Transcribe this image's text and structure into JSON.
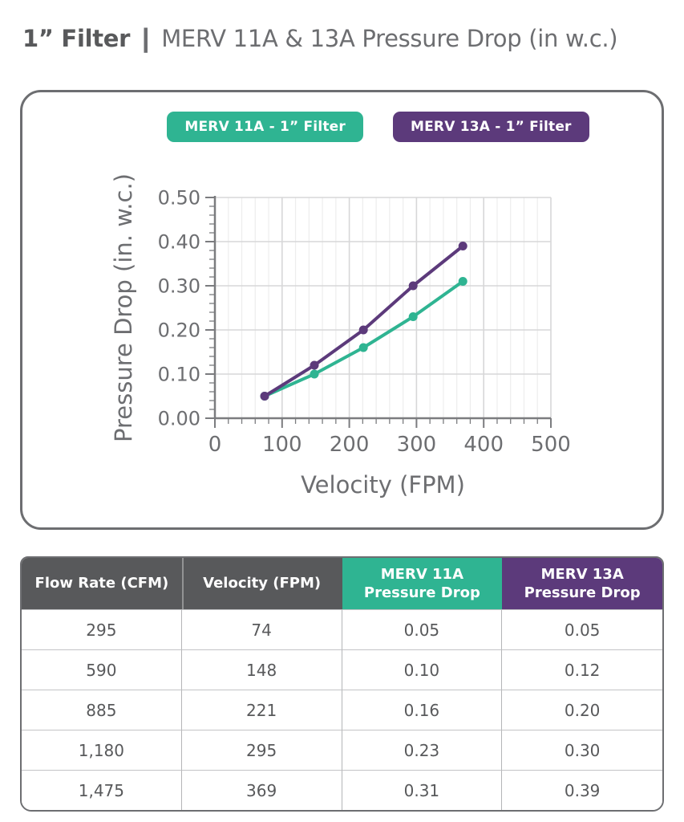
{
  "title": {
    "product": "1” Filter",
    "separator": "|",
    "description": "MERV 11A & 13A Pressure Drop (in w.c.)"
  },
  "colors": {
    "teal": "#2FB492",
    "purple": "#5C3A7B",
    "header_gray": "#58595B",
    "text_gray": "#6d6e71"
  },
  "legend": {
    "items": [
      {
        "label": "MERV 11A - 1” Filter",
        "color": "#2FB492"
      },
      {
        "label": "MERV 13A - 1” Filter",
        "color": "#5C3A7B"
      }
    ]
  },
  "chart_data": {
    "type": "line",
    "title": "",
    "xlabel": "Velocity (FPM)",
    "ylabel": "Pressure Drop (in. w.c.)",
    "xlim": [
      0,
      500
    ],
    "ylim": [
      0,
      0.5
    ],
    "x_major_ticks": [
      0,
      100,
      200,
      300,
      400,
      500
    ],
    "x_minor_step": 20,
    "y_major_ticks": [
      0,
      0.1,
      0.2,
      0.3,
      0.4,
      0.5
    ],
    "y_minor_step": 0.02,
    "y_tick_decimals": 2,
    "grid": "horizontal major gridlines + vertical minor/major gridlines, light gray",
    "legend_position": "top",
    "x": [
      74,
      148,
      221,
      295,
      369
    ],
    "series": [
      {
        "name": "MERV 11A - 1” Filter",
        "color": "#2FB492",
        "values": [
          0.05,
          0.1,
          0.16,
          0.23,
          0.31
        ]
      },
      {
        "name": "MERV 13A - 1” Filter",
        "color": "#5C3A7B",
        "values": [
          0.05,
          0.12,
          0.2,
          0.3,
          0.39
        ]
      }
    ]
  },
  "table": {
    "headers": [
      {
        "lines": [
          "Flow Rate (CFM)"
        ],
        "color": "#58595B"
      },
      {
        "lines": [
          "Velocity (FPM)"
        ],
        "color": "#58595B"
      },
      {
        "lines": [
          "MERV 11A",
          "Pressure Drop"
        ],
        "color": "#2FB492"
      },
      {
        "lines": [
          "MERV 13A",
          "Pressure Drop"
        ],
        "color": "#5C3A7B"
      }
    ],
    "rows": [
      [
        "295",
        "74",
        "0.05",
        "0.05"
      ],
      [
        "590",
        "148",
        "0.10",
        "0.12"
      ],
      [
        "885",
        "221",
        "0.16",
        "0.20"
      ],
      [
        "1,180",
        "295",
        "0.23",
        "0.30"
      ],
      [
        "1,475",
        "369",
        "0.31",
        "0.39"
      ]
    ]
  }
}
